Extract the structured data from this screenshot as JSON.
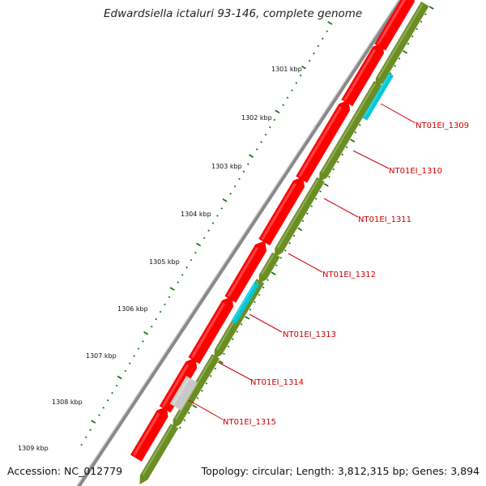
{
  "title": "Edwardsiella ictaluri 93-146, complete genome",
  "footer": {
    "accession": "Accession: NC_012779",
    "summary": "Topology: circular; Length: 3,812,315 bp; Genes: 3,894"
  },
  "colors": {
    "backbone": "#8a8a8a",
    "forward_cds": "#ff0000",
    "reverse_cds": "#6b8e23",
    "rna_feature": "#00c8d8",
    "pseudo_feature": "#c8c8c8",
    "ticks": "#1a7a1a",
    "callout": "#cc0000"
  },
  "tick_labels": [
    "1301 kbp",
    "1302 kbp",
    "1303 kbp",
    "1304 kbp",
    "1305 kbp",
    "1306 kbp",
    "1307 kbp",
    "1308 kbp",
    "1309 kbp"
  ],
  "gene_labels": [
    "NT01EI_1309",
    "NT01EI_1310",
    "NT01EI_1311",
    "NT01EI_1312",
    "NT01EI_1313",
    "NT01EI_1314",
    "NT01EI_1315"
  ]
}
